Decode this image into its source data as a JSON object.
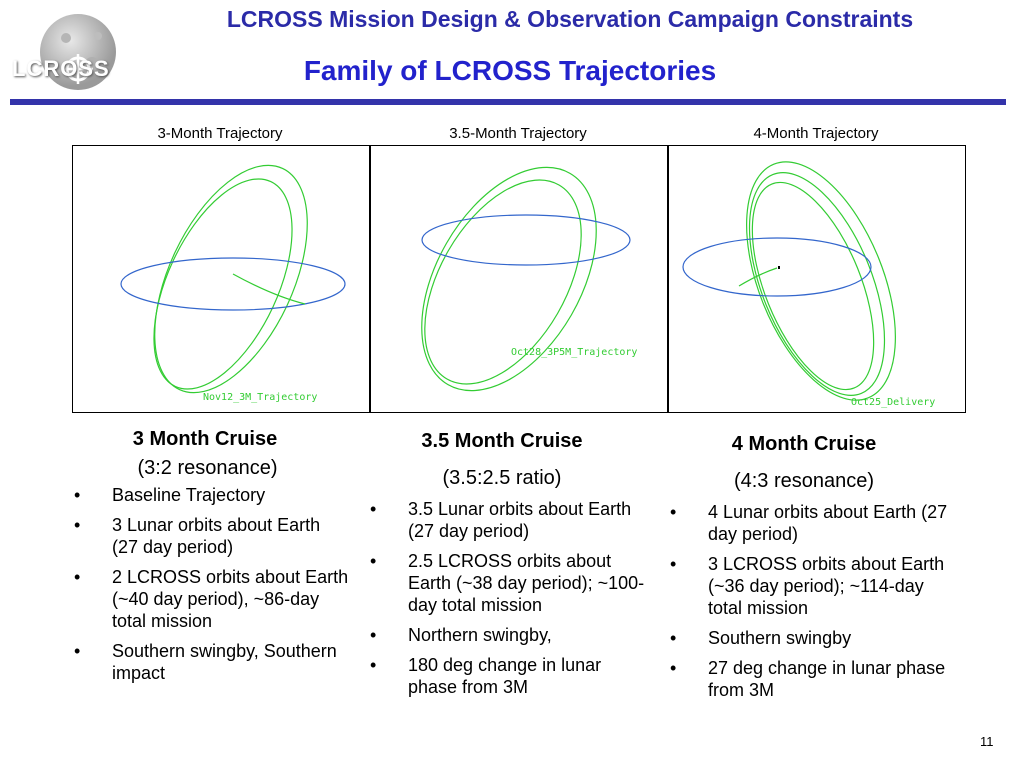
{
  "header": {
    "title": "LCROSS Mission Design & Observation Campaign Constraints",
    "subtitle": "Family of LCROSS Trajectories",
    "logo_text": "LCROSS"
  },
  "panels": [
    {
      "label": "3-Month Trajectory",
      "plot_tag": "Nov12_3M_Trajectory"
    },
    {
      "label": "3.5-Month Trajectory",
      "plot_tag": "Oct28_3P5M_Trajectory"
    },
    {
      "label": "4-Month Trajectory",
      "plot_tag": "Oct25_Delivery"
    }
  ],
  "columns": [
    {
      "heading": "3 Month Cruise",
      "subheading": "(3:2 resonance)",
      "bullets": [
        "Baseline Trajectory",
        "3 Lunar orbits about Earth (27 day period)",
        "2 LCROSS orbits about Earth (~40 day period), ~86-day total mission",
        "Southern swingby, Southern impact"
      ]
    },
    {
      "heading": "3.5 Month Cruise",
      "subheading": "(3.5:2.5 ratio)",
      "bullets": [
        "3.5 Lunar orbits about Earth (27 day period)",
        "2.5 LCROSS orbits about Earth (~38 day period); ~100-day total mission",
        "Northern swingby,",
        "180 deg change in lunar phase from 3M"
      ]
    },
    {
      "heading": "4 Month Cruise",
      "subheading": "(4:3 resonance)",
      "bullets": [
        "4 Lunar orbits about Earth (27 day period)",
        "3 LCROSS orbits about Earth (~36 day period); ~114-day total mission",
        "Southern swingby",
        "27 deg change in lunar phase from 3M"
      ]
    }
  ],
  "bullet_glyph": "•",
  "page_number": "11",
  "colors": {
    "title": "#2b2ba8",
    "subtitle": "#2222cc",
    "rule": "#3333aa",
    "lunar_orbit": "#3366cc",
    "lcross_orbit": "#33cc33"
  }
}
